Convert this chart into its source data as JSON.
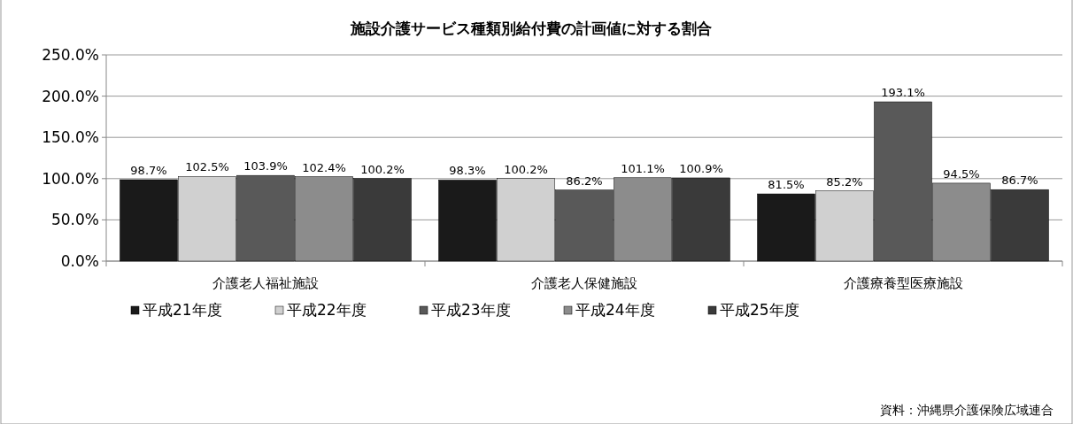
{
  "chart_data": {
    "type": "bar",
    "title": "施設介護サービス種類別給付費の計画値に対する割合",
    "categories": [
      "介護老人福祉施設",
      "介護老人保健施設",
      "介護療養型医療施設"
    ],
    "series": [
      {
        "name": "平成21年度",
        "color": "#1a1a1a",
        "values": [
          98.7,
          98.3,
          81.5
        ],
        "value_labels": [
          "98.7%",
          "98.3%",
          "81.5%"
        ]
      },
      {
        "name": "平成22年度",
        "color": "#d0d0d0",
        "values": [
          102.5,
          100.2,
          85.2
        ],
        "value_labels": [
          "102.5%",
          "100.2%",
          "85.2%"
        ]
      },
      {
        "name": "平成23年度",
        "color": "#595959",
        "values": [
          103.9,
          86.2,
          193.1
        ],
        "value_labels": [
          "103.9%",
          "86.2%",
          "193.1%"
        ]
      },
      {
        "name": "平成24年度",
        "color": "#8c8c8c",
        "values": [
          102.4,
          101.1,
          94.5
        ],
        "value_labels": [
          "102.4%",
          "101.1%",
          "94.5%"
        ]
      },
      {
        "name": "平成25年度",
        "color": "#3a3a3a",
        "values": [
          100.2,
          100.9,
          86.7
        ],
        "value_labels": [
          "100.2%",
          "100.9%",
          "86.7%"
        ]
      }
    ],
    "ylim": [
      0,
      250
    ],
    "yticks": [
      {
        "value": 0,
        "label": "0.0%"
      },
      {
        "value": 50,
        "label": "50.0%"
      },
      {
        "value": 100,
        "label": "100.0%"
      },
      {
        "value": 150,
        "label": "150.0%"
      },
      {
        "value": 200,
        "label": "200.0%"
      },
      {
        "value": 250,
        "label": "250.0%"
      }
    ],
    "grid": "y",
    "legend": "bottom",
    "annotations": [
      "資料：沖縄県介護保険広域連合"
    ]
  }
}
